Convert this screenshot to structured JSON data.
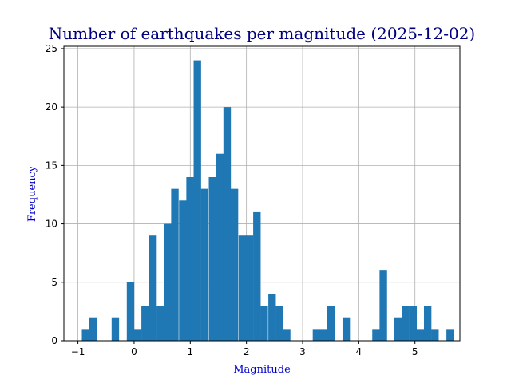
{
  "chart_data": {
    "type": "bar",
    "title": "Number of earthquakes per magnitude (2025-12-02)",
    "xlabel": "Magnitude",
    "ylabel": "Frequency",
    "xlim": [
      -1.25,
      5.8
    ],
    "ylim": [
      0,
      25.2
    ],
    "bin_width": 0.133,
    "grid": true,
    "legend": "none",
    "bar_color": "#1f77b4",
    "title_color": "#000080",
    "label_color": "#0000CD",
    "x_ticks": [
      {
        "value": -1,
        "label": "−1"
      },
      {
        "value": 0,
        "label": "0"
      },
      {
        "value": 1,
        "label": "1"
      },
      {
        "value": 2,
        "label": "2"
      },
      {
        "value": 3,
        "label": "3"
      },
      {
        "value": 4,
        "label": "4"
      },
      {
        "value": 5,
        "label": "5"
      }
    ],
    "y_ticks": [
      {
        "value": 0,
        "label": "0"
      },
      {
        "value": 5,
        "label": "5"
      },
      {
        "value": 10,
        "label": "10"
      },
      {
        "value": 15,
        "label": "15"
      },
      {
        "value": 20,
        "label": "20"
      },
      {
        "value": 25,
        "label": "25"
      }
    ],
    "bins": [
      {
        "x0": -0.93,
        "count": 1
      },
      {
        "x0": -0.8,
        "count": 2
      },
      {
        "x0": -0.4,
        "count": 2
      },
      {
        "x0": -0.13,
        "count": 5
      },
      {
        "x0": 0.0,
        "count": 1
      },
      {
        "x0": 0.13,
        "count": 3
      },
      {
        "x0": 0.27,
        "count": 9
      },
      {
        "x0": 0.4,
        "count": 3
      },
      {
        "x0": 0.53,
        "count": 10
      },
      {
        "x0": 0.66,
        "count": 13
      },
      {
        "x0": 0.8,
        "count": 12
      },
      {
        "x0": 0.93,
        "count": 14
      },
      {
        "x0": 1.06,
        "count": 24
      },
      {
        "x0": 1.19,
        "count": 13
      },
      {
        "x0": 1.33,
        "count": 14
      },
      {
        "x0": 1.46,
        "count": 16
      },
      {
        "x0": 1.59,
        "count": 20
      },
      {
        "x0": 1.72,
        "count": 13
      },
      {
        "x0": 1.86,
        "count": 9
      },
      {
        "x0": 1.99,
        "count": 9
      },
      {
        "x0": 2.12,
        "count": 11
      },
      {
        "x0": 2.25,
        "count": 3
      },
      {
        "x0": 2.39,
        "count": 4
      },
      {
        "x0": 2.52,
        "count": 3
      },
      {
        "x0": 2.65,
        "count": 1
      },
      {
        "x0": 3.18,
        "count": 1
      },
      {
        "x0": 3.31,
        "count": 1
      },
      {
        "x0": 3.44,
        "count": 3
      },
      {
        "x0": 3.71,
        "count": 2
      },
      {
        "x0": 4.24,
        "count": 1
      },
      {
        "x0": 4.37,
        "count": 6
      },
      {
        "x0": 4.63,
        "count": 2
      },
      {
        "x0": 4.77,
        "count": 3
      },
      {
        "x0": 4.9,
        "count": 3
      },
      {
        "x0": 5.03,
        "count": 1
      },
      {
        "x0": 5.16,
        "count": 3
      },
      {
        "x0": 5.29,
        "count": 1
      },
      {
        "x0": 5.56,
        "count": 1
      }
    ]
  }
}
